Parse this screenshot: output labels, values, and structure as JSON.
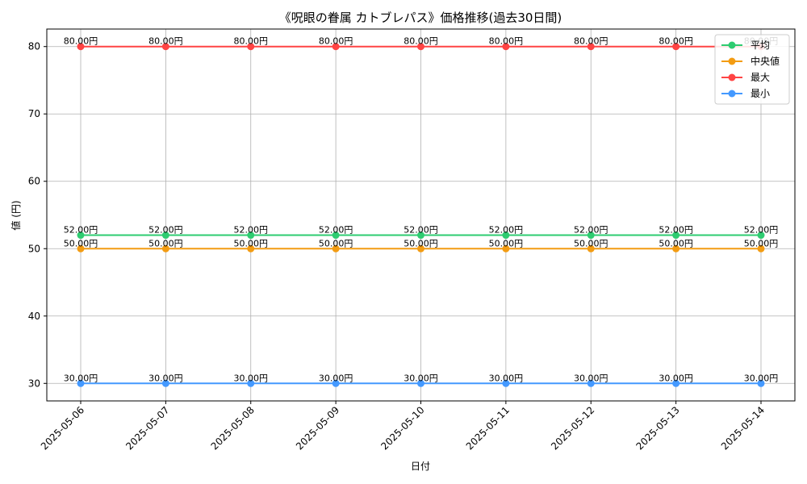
{
  "chart_data": {
    "type": "line",
    "title": "《呪眼の眷属 カトブレパス》価格推移(過去30日間)",
    "xlabel": "日付",
    "ylabel": "値 (円)",
    "ylim": [
      27.4,
      82.6
    ],
    "yticks": [
      30,
      40,
      50,
      60,
      70,
      80
    ],
    "grid": true,
    "legend_position": "top-right",
    "categories": [
      "2025-05-06",
      "2025-05-07",
      "2025-05-08",
      "2025-05-09",
      "2025-05-10",
      "2025-05-11",
      "2025-05-12",
      "2025-05-13",
      "2025-05-14"
    ],
    "series": [
      {
        "name": "平均",
        "color": "#2ecc71",
        "values": [
          52,
          52,
          52,
          52,
          52,
          52,
          52,
          52,
          52
        ],
        "labels": [
          "52.00円",
          "52.00円",
          "52.00円",
          "52.00円",
          "52.00円",
          "52.00円",
          "52.00円",
          "52.00円",
          "52.00円"
        ]
      },
      {
        "name": "中央値",
        "color": "#f39c12",
        "values": [
          50,
          50,
          50,
          50,
          50,
          50,
          50,
          50,
          50
        ],
        "labels": [
          "50.00円",
          "50.00円",
          "50.00円",
          "50.00円",
          "50.00円",
          "50.00円",
          "50.00円",
          "50.00円",
          "50.00円"
        ]
      },
      {
        "name": "最大",
        "color": "#ff4444",
        "values": [
          80,
          80,
          80,
          80,
          80,
          80,
          80,
          80,
          80
        ],
        "labels": [
          "80.00円",
          "80.00円",
          "80.00円",
          "80.00円",
          "80.00円",
          "80.00円",
          "80.00円",
          "80.00円",
          "80.00円"
        ]
      },
      {
        "name": "最小",
        "color": "#4499ff",
        "values": [
          30,
          30,
          30,
          30,
          30,
          30,
          30,
          30,
          30
        ],
        "labels": [
          "30.00円",
          "30.00円",
          "30.00円",
          "30.00円",
          "30.00円",
          "30.00円",
          "30.00円",
          "30.00円",
          "30.00円"
        ]
      }
    ]
  }
}
